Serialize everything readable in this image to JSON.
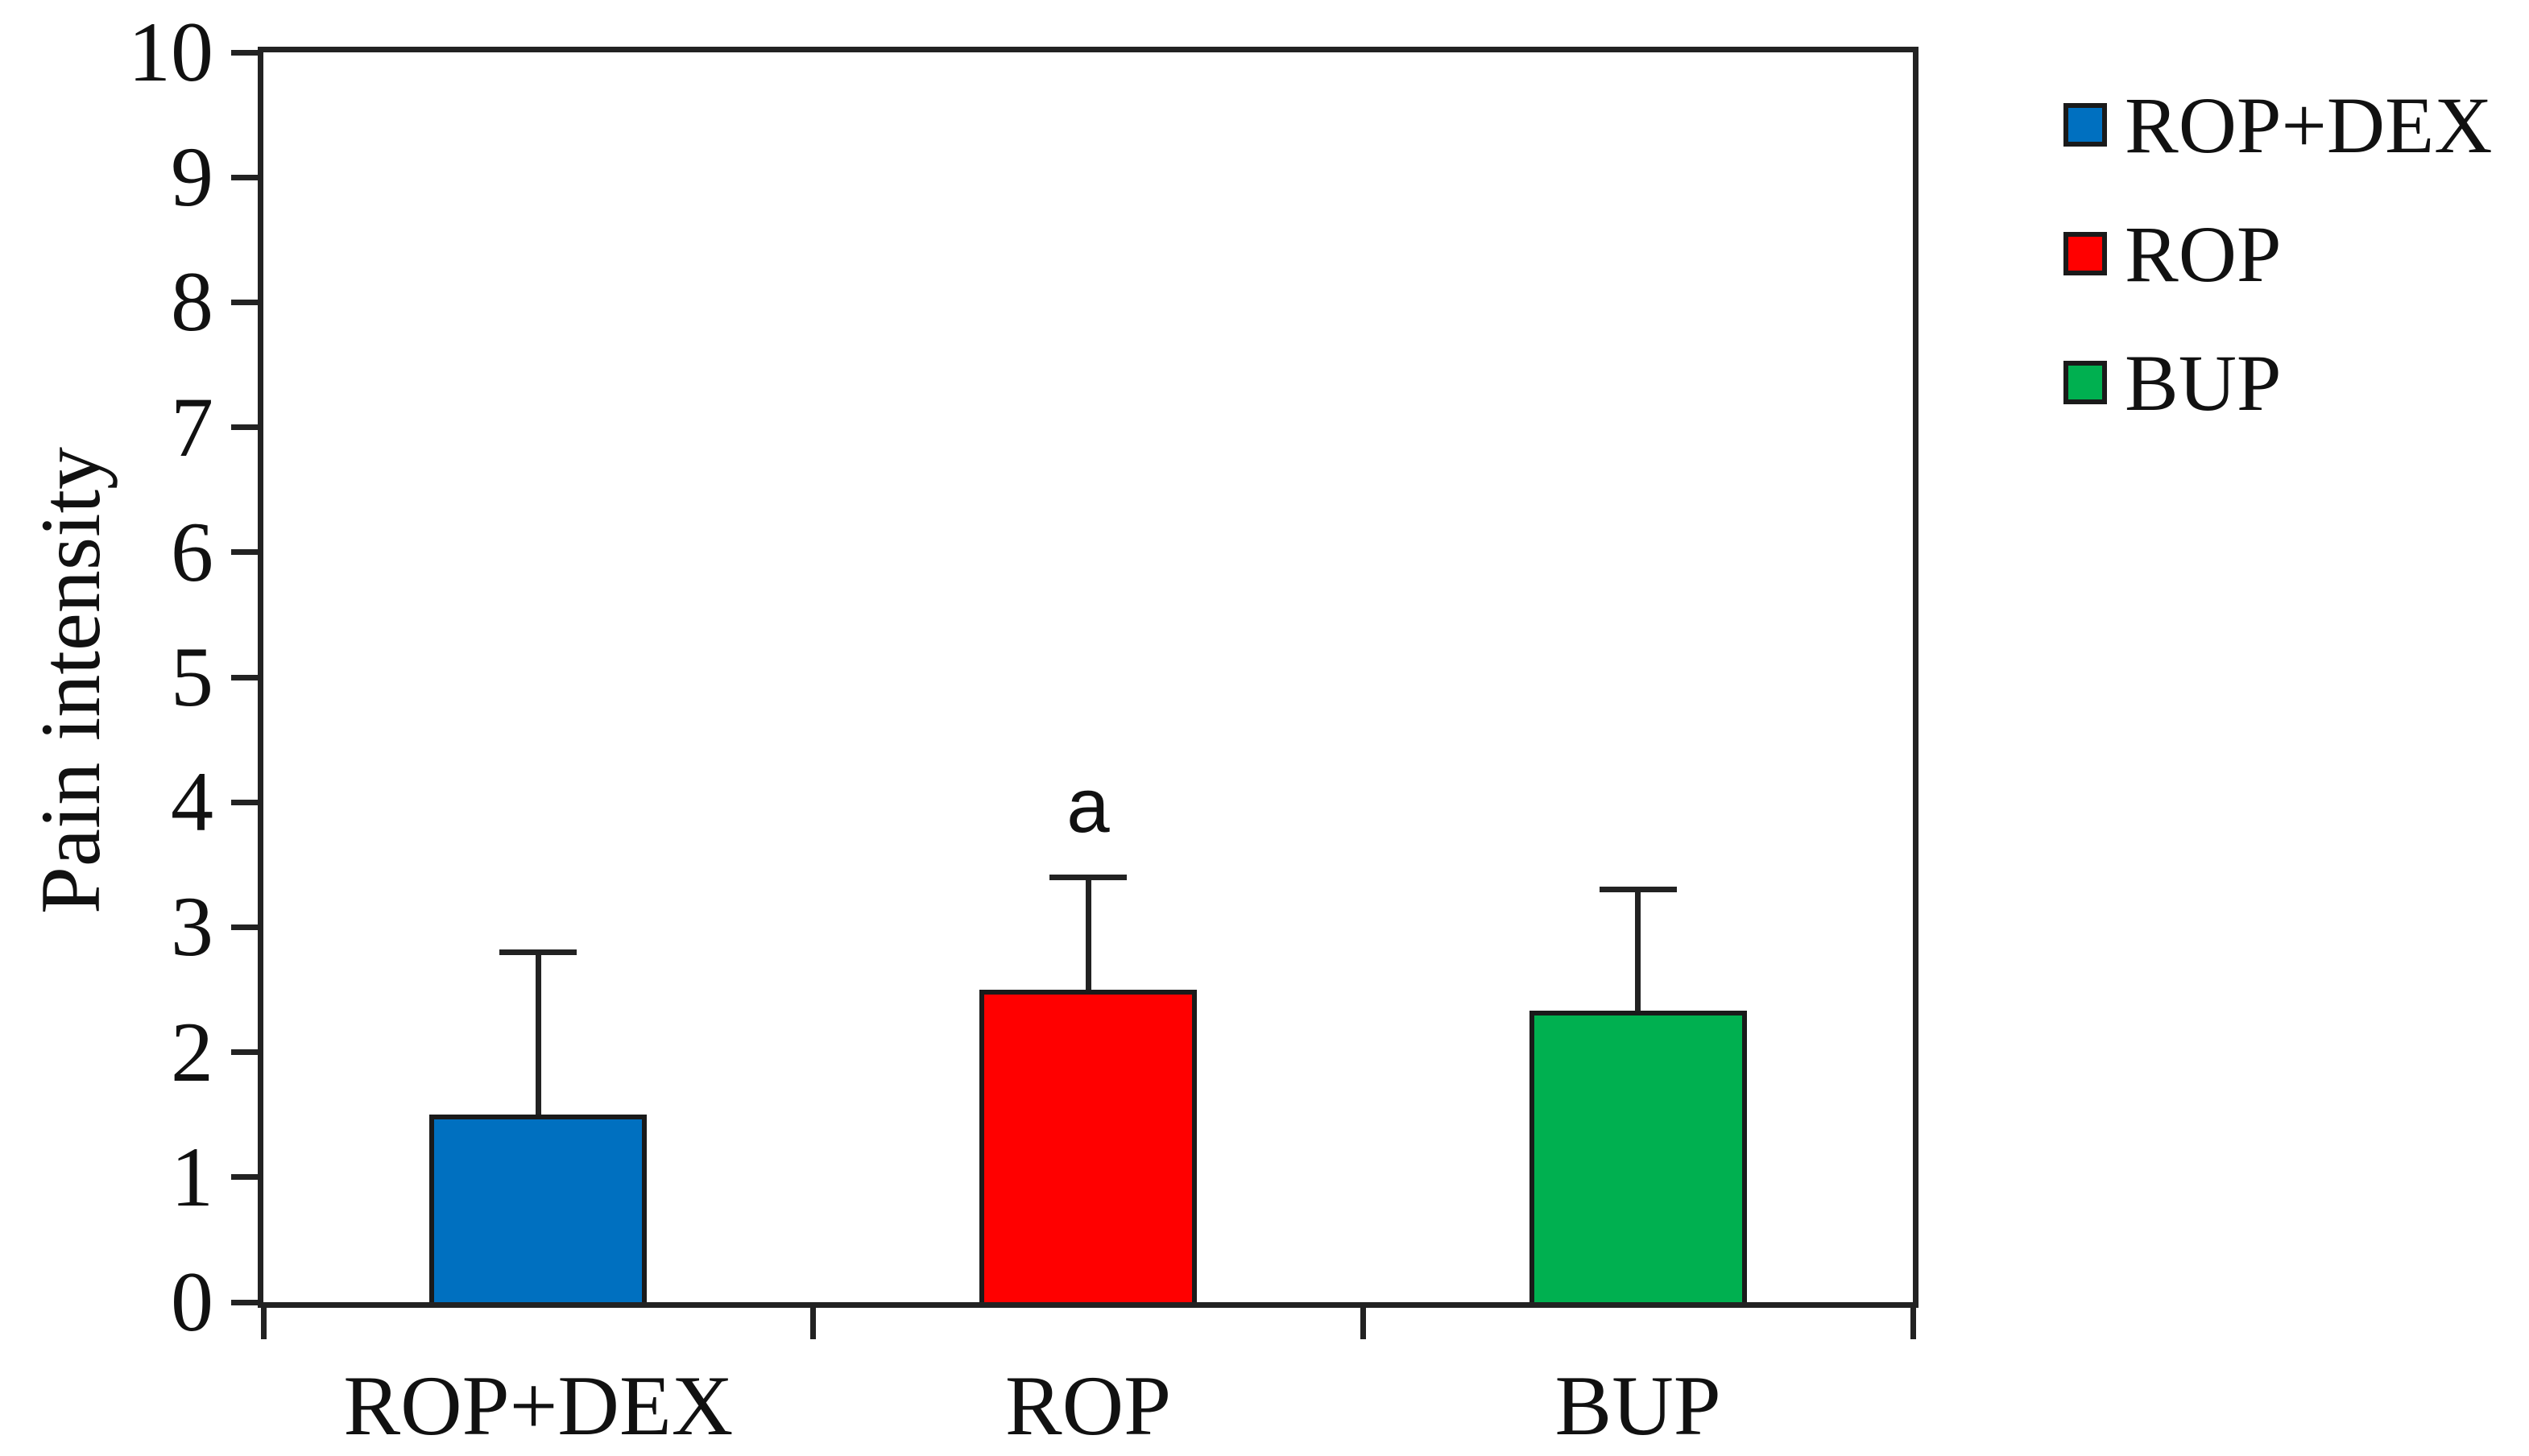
{
  "figure": {
    "background": "#ffffff",
    "axis_color": "#222222"
  },
  "chart_data": {
    "type": "bar",
    "title": "",
    "xlabel": "",
    "ylabel": "Pain intensity",
    "ylim": [
      0,
      10
    ],
    "yticks": [
      0,
      1,
      2,
      3,
      4,
      5,
      6,
      7,
      8,
      9,
      10
    ],
    "grid": false,
    "frame": true,
    "categories": [
      "ROP+DEX",
      "ROP",
      "BUP"
    ],
    "series": [
      {
        "name": "ROP+DEX",
        "value": 1.5,
        "error_top": 2.8,
        "color": "#0070C0",
        "annotation": ""
      },
      {
        "name": "ROP",
        "value": 2.5,
        "error_top": 3.4,
        "color": "#FF0000",
        "annotation": "a"
      },
      {
        "name": "BUP",
        "value": 2.33,
        "error_top": 3.3,
        "color": "#00B050",
        "annotation": ""
      }
    ],
    "legend": {
      "position": "right",
      "items": [
        {
          "label": "ROP+DEX",
          "color": "#0070C0"
        },
        {
          "label": "ROP",
          "color": "#FF0000"
        },
        {
          "label": "BUP",
          "color": "#00B050"
        }
      ]
    }
  }
}
